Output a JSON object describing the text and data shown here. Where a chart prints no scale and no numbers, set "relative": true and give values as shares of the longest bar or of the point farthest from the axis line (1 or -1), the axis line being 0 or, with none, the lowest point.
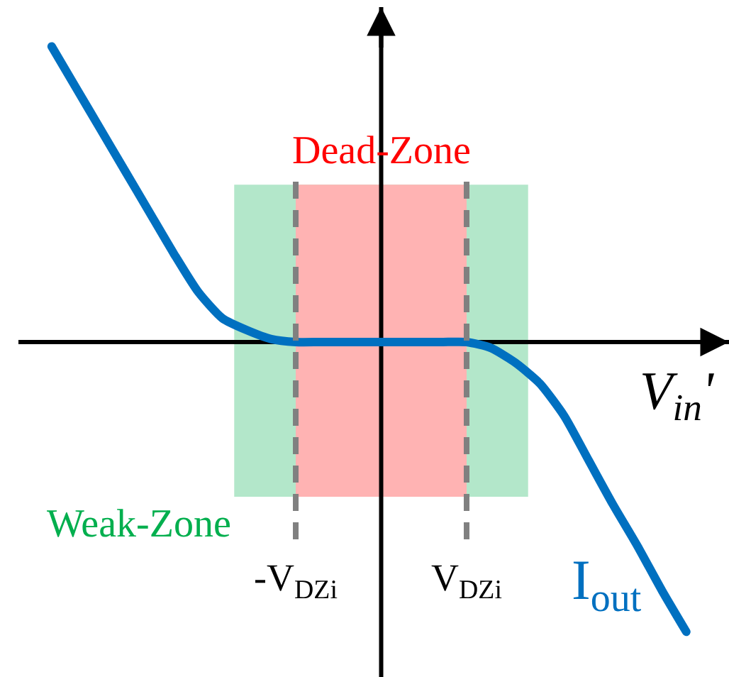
{
  "chart_data": {
    "type": "line",
    "relative": true,
    "xlabel": "V$_{in}$'",
    "categories": [
      null,
      null,
      null,
      null,
      null,
      null,
      null,
      null,
      null,
      null,
      "-V$_{DZi}$",
      null,
      null,
      null,
      null,
      null,
      null,
      "V$_{DZi}$",
      null,
      null,
      null,
      null,
      null,
      null,
      null,
      null,
      null
    ],
    "series": [
      {
        "name": "I$_{out}$",
        "color": "#0070c0",
        "values": [
          1.0,
          0.86,
          0.72,
          0.58,
          0.44,
          0.3,
          0.17,
          0.08,
          0.04,
          0.01,
          0,
          0,
          0,
          0,
          0,
          0,
          0,
          0,
          -0.02,
          -0.07,
          -0.14,
          -0.25,
          -0.4,
          -0.55,
          -0.69,
          -0.84,
          -0.98
        ]
      }
    ],
    "bands": [
      {
        "axis": "x",
        "from": "-V$_{DZi}$",
        "to": "V$_{DZi}$",
        "label": "Dead-Zone",
        "color": "#ffb3b3"
      }
    ],
    "ref_lines": [
      {
        "axis": "x",
        "value": "-V$_{DZi}$",
        "color": "#808080",
        "line_style": "dashed"
      },
      {
        "axis": "x",
        "value": "V$_{DZi}$",
        "color": "#808080",
        "line_style": "dashed"
      }
    ],
    "annotations": [
      "Weak-Zone"
    ],
    "grid": false,
    "legend": false
  }
}
